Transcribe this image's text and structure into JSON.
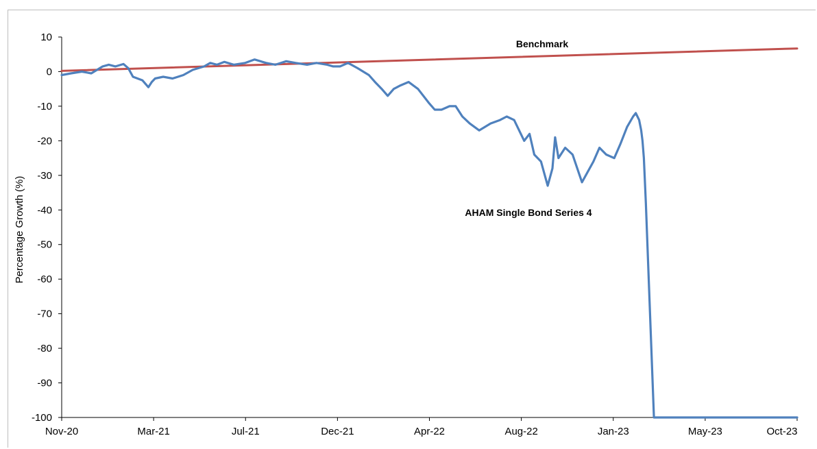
{
  "chart_data": {
    "type": "line",
    "title": "",
    "xlabel": "",
    "ylabel": "Percentage Growth (%)",
    "ylim": [
      -100,
      10
    ],
    "yticks": [
      10,
      0,
      -10,
      -20,
      -30,
      -40,
      -50,
      -60,
      -70,
      -80,
      -90,
      -100
    ],
    "xticks": [
      "Nov-20",
      "Mar-21",
      "Jul-21",
      "Dec-21",
      "Apr-22",
      "Aug-22",
      "Jan-23",
      "May-23",
      "Oct-23"
    ],
    "xlim": [
      "2020-11-01",
      "2023-10-31"
    ],
    "grid": false,
    "legend": "none",
    "annotations": [
      {
        "text": "Benchmark",
        "series": "Benchmark"
      },
      {
        "text": "AHAM Single Bond Series 4",
        "series": "AHAM Single Bond Series 4"
      }
    ],
    "series": [
      {
        "name": "Benchmark",
        "color": "#c0504d",
        "x": [
          "2020-11-01",
          "2023-10-31"
        ],
        "values": [
          0.2,
          6.7
        ]
      },
      {
        "name": "AHAM Single Bond Series 4",
        "color": "#4f81bd",
        "x": [
          "2020-11-01",
          "2020-11-15",
          "2020-12-01",
          "2020-12-15",
          "2021-01-01",
          "2021-01-10",
          "2021-01-20",
          "2021-02-01",
          "2021-02-08",
          "2021-02-15",
          "2021-03-01",
          "2021-03-10",
          "2021-03-15",
          "2021-03-20",
          "2021-04-01",
          "2021-04-15",
          "2021-05-01",
          "2021-05-15",
          "2021-06-01",
          "2021-06-10",
          "2021-06-20",
          "2021-07-01",
          "2021-07-15",
          "2021-08-01",
          "2021-08-15",
          "2021-09-01",
          "2021-09-15",
          "2021-10-01",
          "2021-10-15",
          "2021-11-01",
          "2021-11-15",
          "2021-12-01",
          "2021-12-10",
          "2021-12-20",
          "2022-01-01",
          "2022-01-15",
          "2022-02-01",
          "2022-02-10",
          "2022-02-20",
          "2022-03-01",
          "2022-03-10",
          "2022-03-20",
          "2022-04-01",
          "2022-04-15",
          "2022-05-01",
          "2022-05-10",
          "2022-05-20",
          "2022-06-01",
          "2022-06-10",
          "2022-06-20",
          "2022-07-01",
          "2022-07-15",
          "2022-08-01",
          "2022-08-15",
          "2022-08-25",
          "2022-09-05",
          "2022-09-10",
          "2022-09-15",
          "2022-09-20",
          "2022-09-28",
          "2022-10-05",
          "2022-10-15",
          "2022-10-25",
          "2022-11-01",
          "2022-11-05",
          "2022-11-10",
          "2022-11-20",
          "2022-12-01",
          "2022-12-15",
          "2023-01-01",
          "2023-01-10",
          "2023-01-20",
          "2023-02-01",
          "2023-02-10",
          "2023-02-20",
          "2023-03-01",
          "2023-03-05",
          "2023-03-10",
          "2023-03-13",
          "2023-03-15",
          "2023-03-17",
          "2023-03-20",
          "2023-04-01",
          "2023-05-01",
          "2023-07-01",
          "2023-09-01",
          "2023-10-31"
        ],
        "values": [
          -1,
          -0.5,
          0,
          -0.5,
          1.5,
          2,
          1.5,
          2.2,
          1,
          -1.5,
          -2.5,
          -4.5,
          -3,
          -2,
          -1.5,
          -2,
          -1,
          0.5,
          1.5,
          2.5,
          2,
          2.8,
          2,
          2.5,
          3.5,
          2.5,
          2,
          3,
          2.5,
          2,
          2.5,
          2,
          1.5,
          1.5,
          2.5,
          1,
          -1,
          -3,
          -5,
          -7,
          -5,
          -4,
          -3,
          -5,
          -9,
          -11,
          -11,
          -10,
          -10,
          -13,
          -15,
          -17,
          -15,
          -14,
          -13,
          -14,
          -16,
          -18,
          -20,
          -18,
          -24,
          -26,
          -33,
          -28,
          -19,
          -25,
          -22,
          -24,
          -32,
          -26,
          -22,
          -24,
          -25,
          -21,
          -16,
          -13,
          -12,
          -14,
          -17,
          -20,
          -25,
          -38,
          -100,
          -100,
          -100,
          -100,
          -100
        ]
      }
    ]
  }
}
